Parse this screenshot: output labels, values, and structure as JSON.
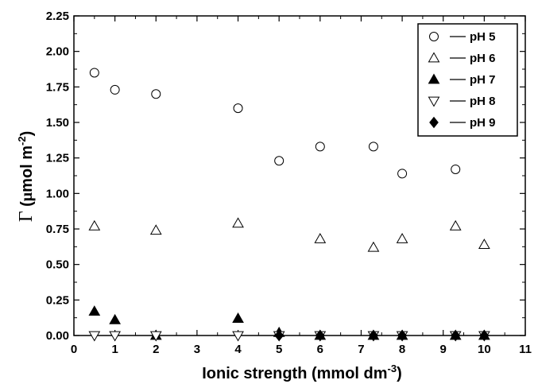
{
  "chart_data": {
    "type": "scatter",
    "xlabel": {
      "main": "Ionic strength (mmol dm",
      "sup": "-3",
      "close": ")"
    },
    "ylabel": {
      "gamma": "Γ",
      "mid": " (",
      "mu": "μ",
      "main": "mol m",
      "sup": "-2",
      "close": ")"
    },
    "xlim": [
      0,
      11
    ],
    "ylim": [
      0,
      2.25
    ],
    "x_ticks": [
      "0",
      "1",
      "2",
      "3",
      "4",
      "5",
      "6",
      "7",
      "8",
      "9",
      "10",
      "11"
    ],
    "y_ticks": [
      "0.00",
      "0.25",
      "0.50",
      "0.75",
      "1.00",
      "1.25",
      "1.50",
      "1.75",
      "2.00",
      "2.25"
    ],
    "grid": false,
    "legend_position": "top-right",
    "series": [
      {
        "name": "pH 5",
        "marker": "circle-open",
        "x": [
          0.5,
          1,
          2,
          4,
          5,
          6,
          7.3,
          8,
          9.3
        ],
        "y": [
          1.85,
          1.73,
          1.7,
          1.6,
          1.23,
          1.33,
          1.33,
          1.14,
          1.17
        ]
      },
      {
        "name": "pH 6",
        "marker": "triangle-up-open",
        "x": [
          0.5,
          2,
          4,
          6,
          7.3,
          8,
          9.3,
          10
        ],
        "y": [
          0.77,
          0.74,
          0.79,
          0.68,
          0.62,
          0.68,
          0.77,
          0.64
        ]
      },
      {
        "name": "pH 7",
        "marker": "triangle-up-filled",
        "x": [
          0.5,
          1,
          2,
          4,
          5,
          6,
          7.3,
          8,
          9.3,
          10
        ],
        "y": [
          0.17,
          0.11,
          0.0,
          0.12,
          0.02,
          0.0,
          0.0,
          0.0,
          0.0,
          0.0
        ]
      },
      {
        "name": "pH 8",
        "marker": "triangle-down-open",
        "x": [
          0.5,
          1,
          2,
          4,
          5,
          6,
          7.3,
          8,
          9.3,
          10
        ],
        "y": [
          0.0,
          0.0,
          0.0,
          0.0,
          0.0,
          0.0,
          0.0,
          0.0,
          0.0,
          0.0
        ]
      },
      {
        "name": "pH 9",
        "marker": "diamond-filled",
        "x": [
          5,
          6,
          7.3,
          8,
          9.3,
          10
        ],
        "y": [
          0.0,
          0.0,
          0.0,
          0.0,
          0.0,
          0.0
        ]
      }
    ]
  }
}
